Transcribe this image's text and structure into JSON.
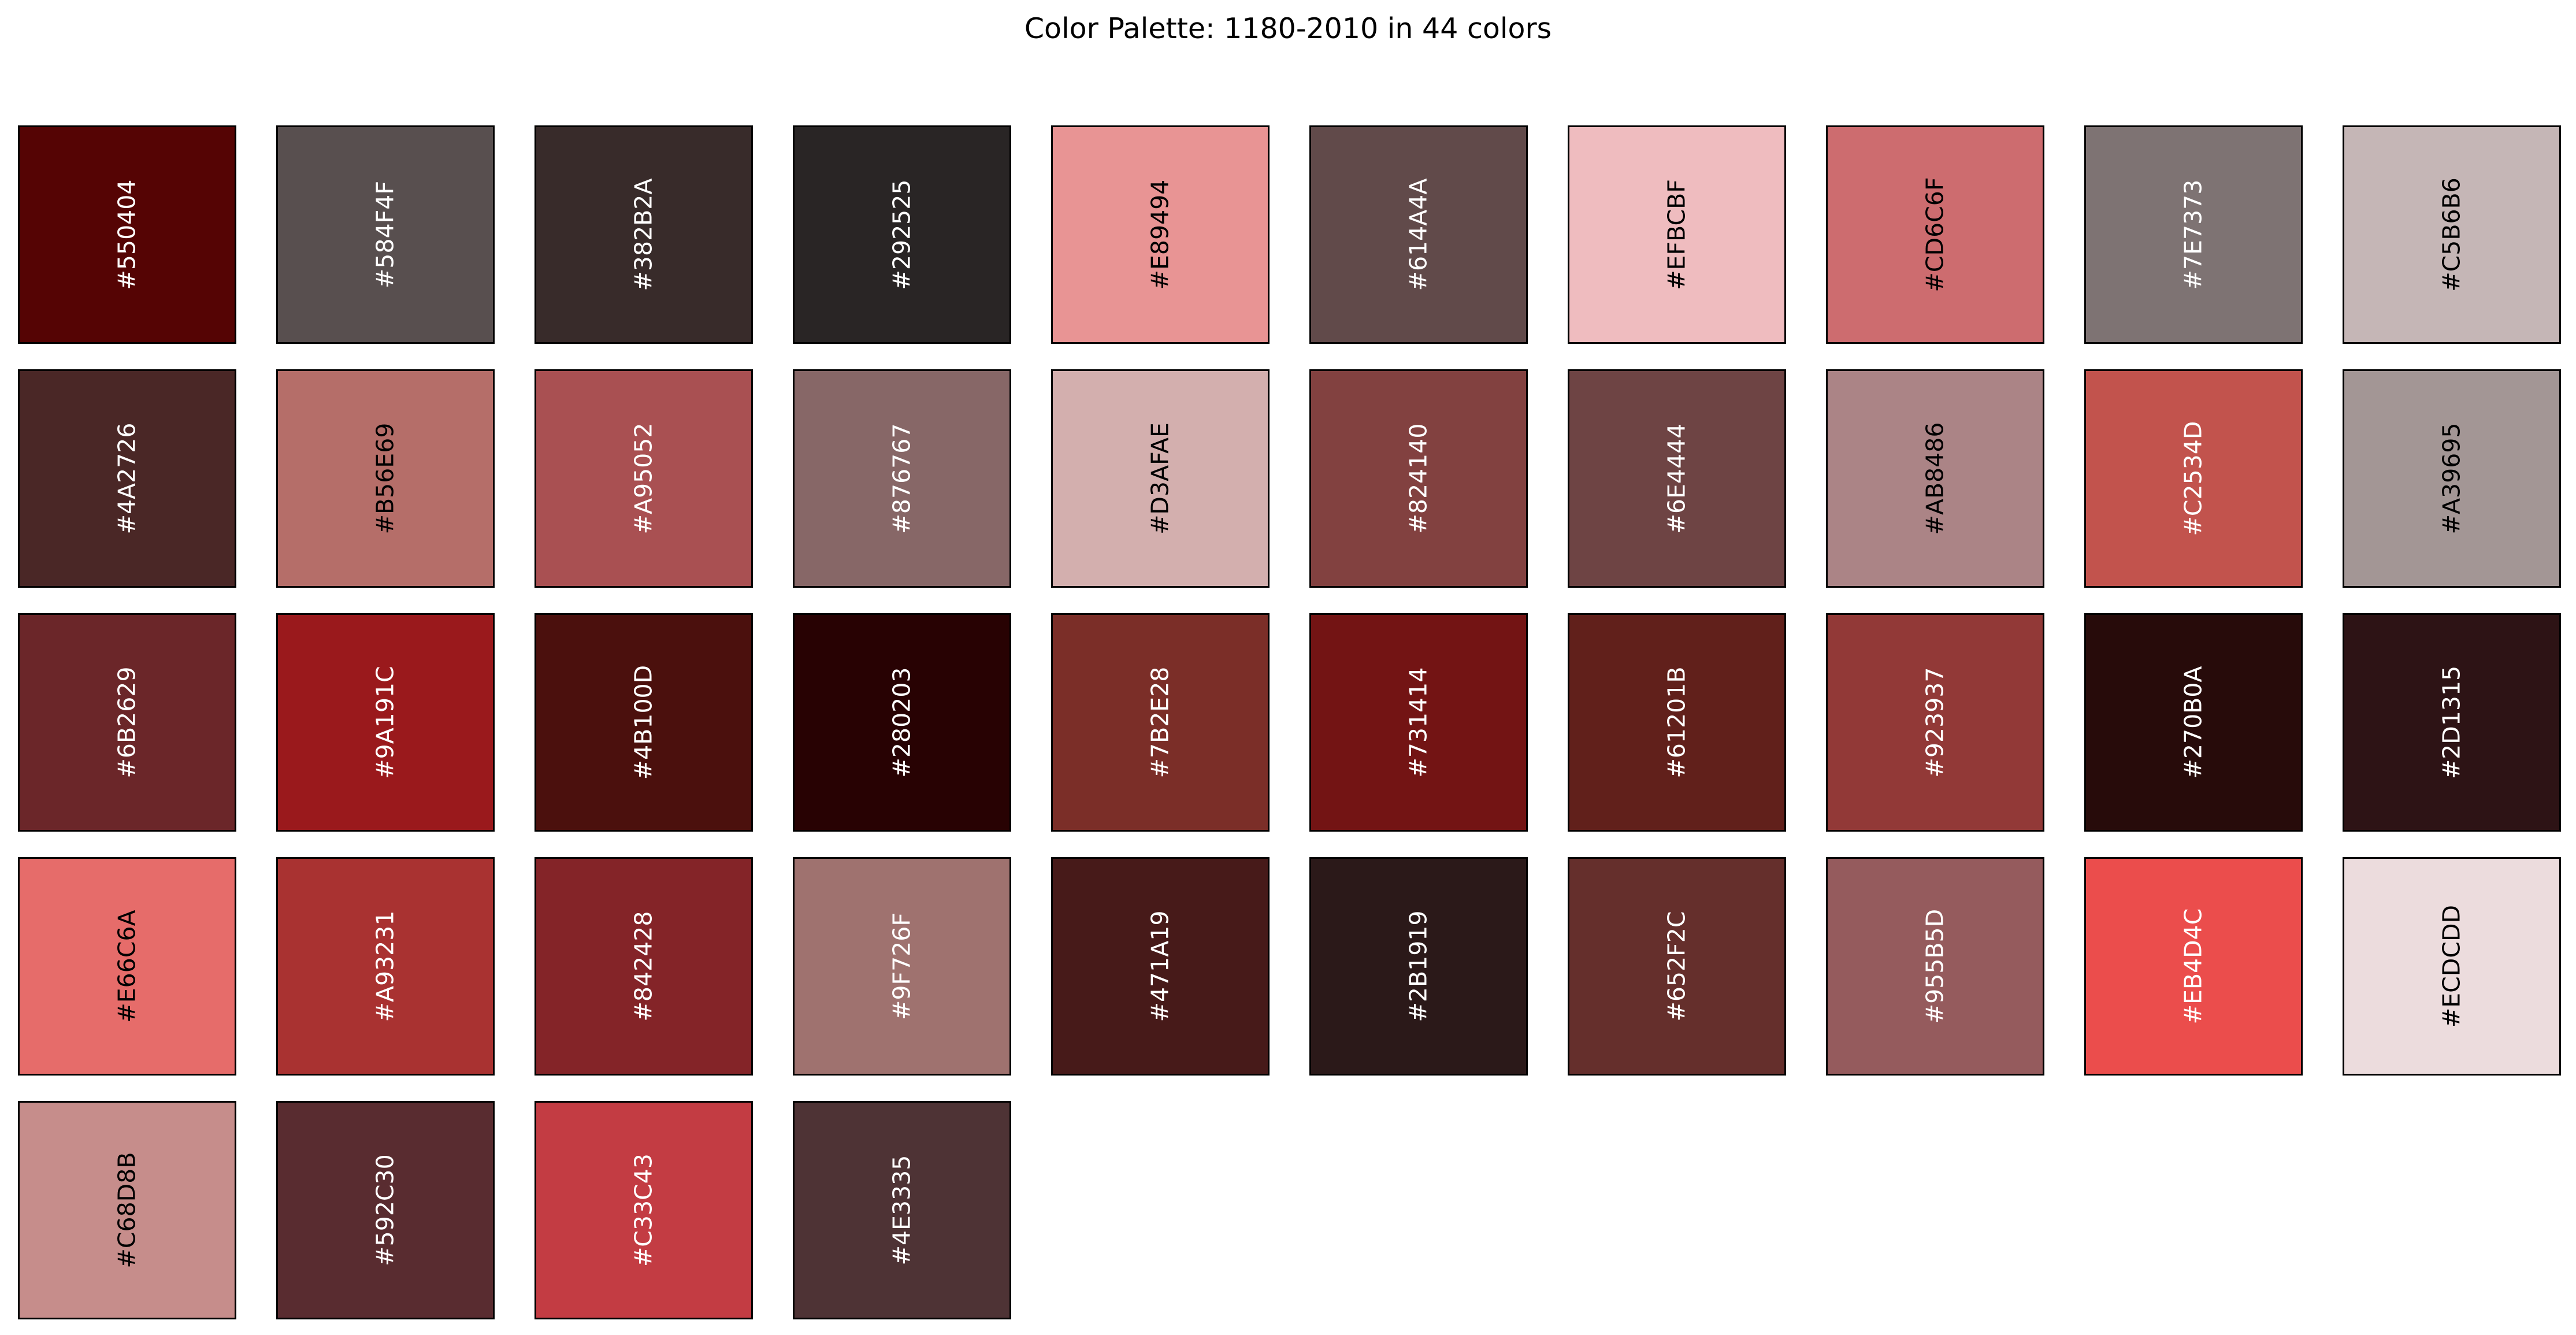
{
  "chart_data": {
    "type": "table",
    "title": "Color Palette: 1180-2010 in 44 colors",
    "columns": 10,
    "colors": [
      "#550404",
      "#584F4F",
      "#382B2A",
      "#292525",
      "#E89494",
      "#614A4A",
      "#EFBCBF",
      "#CD6C6F",
      "#7E7373",
      "#C5B6B6",
      "#4A2726",
      "#B56E69",
      "#A95052",
      "#876767",
      "#D3AFAE",
      "#824140",
      "#6E4444",
      "#AB8486",
      "#C2534D",
      "#A39695",
      "#6B2629",
      "#9A191C",
      "#4B100D",
      "#280203",
      "#7B2E28",
      "#731414",
      "#61201B",
      "#923937",
      "#270B0A",
      "#2D1315",
      "#E66C6A",
      "#A93231",
      "#842428",
      "#9F726F",
      "#471A19",
      "#2B1919",
      "#652F2C",
      "#955B5D",
      "#EB4D4C",
      "#ECDCDD",
      "#C68D8B",
      "#592C30",
      "#C33C43",
      "#4E3335"
    ]
  }
}
